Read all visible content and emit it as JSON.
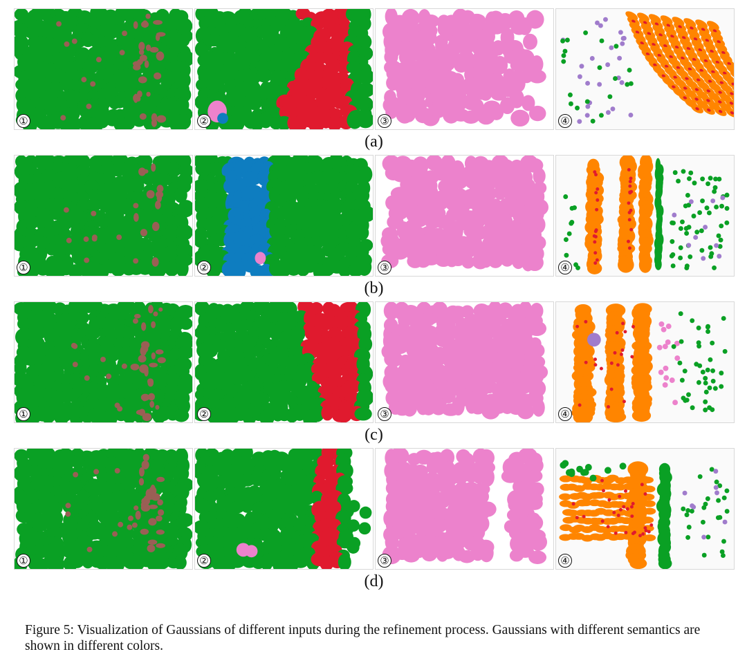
{
  "figure": {
    "rows": [
      {
        "label": "(a)",
        "panels": [
          "①",
          "②",
          "③",
          "④"
        ]
      },
      {
        "label": "(b)",
        "panels": [
          "①",
          "②",
          "③",
          "④"
        ]
      },
      {
        "label": "(c)",
        "panels": [
          "①",
          "②",
          "③",
          "④"
        ]
      },
      {
        "label": "(d)",
        "panels": [
          "①",
          "②",
          "③",
          "④"
        ]
      }
    ]
  },
  "caption": "Figure 5: Visualization of Gaussians of different inputs during the refinement process. Gaussians with different semantics are shown in different colors.",
  "colors": {
    "green": "#0aa024",
    "brown": "#9a5f55",
    "red": "#e01a2e",
    "blue": "#0e7dc0",
    "pink": "#ec82cc",
    "orange": "#ff8500",
    "purple": "#a07ccc"
  }
}
